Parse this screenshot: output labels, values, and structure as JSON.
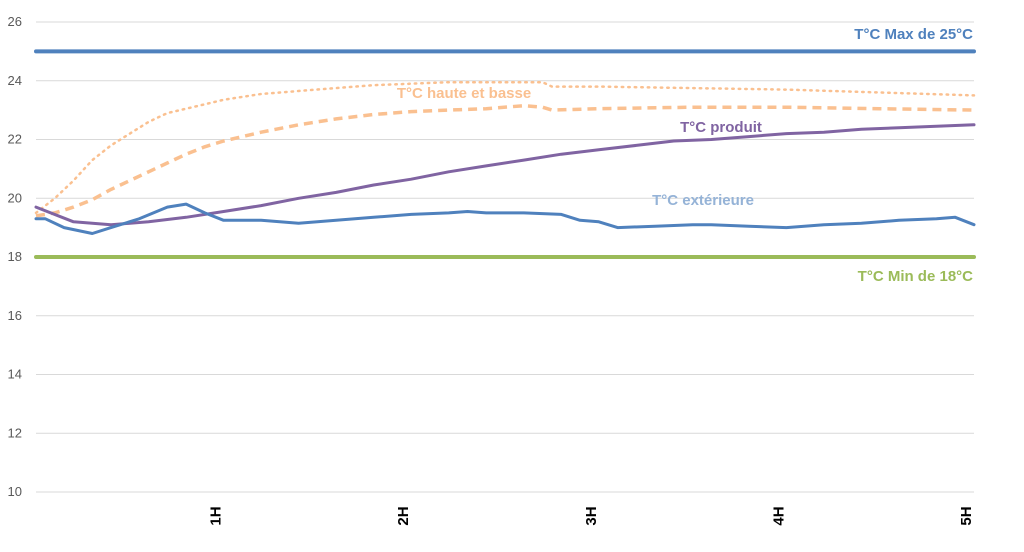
{
  "chart_data": {
    "type": "line",
    "title": "",
    "xlabel": "",
    "ylabel": "",
    "ylim": [
      10,
      26
    ],
    "xlim": [
      0,
      5
    ],
    "y_ticks": [
      10,
      12,
      14,
      16,
      18,
      20,
      22,
      24,
      26
    ],
    "x_ticks": [
      {
        "value": 1,
        "label": "1H"
      },
      {
        "value": 2,
        "label": "2H"
      },
      {
        "value": 3,
        "label": "3H"
      },
      {
        "value": 4,
        "label": "4H"
      },
      {
        "value": 5,
        "label": "5H"
      }
    ],
    "grid": "horizontal",
    "legend": "none",
    "series": [
      {
        "name": "T°C Max de 25°C",
        "color": "#4f81bd",
        "style": "solid",
        "x": [
          0,
          5
        ],
        "y": [
          25,
          25
        ]
      },
      {
        "name": "T°C Min de 18°C",
        "color": "#9bbb59",
        "style": "solid",
        "x": [
          0,
          5
        ],
        "y": [
          18,
          18
        ]
      },
      {
        "name": "T°C haute et basse",
        "color": "#fac090",
        "style": "dotted",
        "x": [
          0,
          0.1,
          0.2,
          0.3,
          0.4,
          0.5,
          0.6,
          0.7,
          0.8,
          0.9,
          1.0,
          1.2,
          1.4,
          1.6,
          1.8,
          2.0,
          2.2,
          2.4,
          2.6,
          2.7,
          2.75,
          3.0,
          3.5,
          4.0,
          4.5,
          5.0
        ],
        "y": [
          19.5,
          20.0,
          20.6,
          21.3,
          21.8,
          22.2,
          22.6,
          22.9,
          23.05,
          23.2,
          23.35,
          23.55,
          23.65,
          23.75,
          23.85,
          23.9,
          23.95,
          23.95,
          23.95,
          23.95,
          23.8,
          23.8,
          23.75,
          23.7,
          23.6,
          23.5
        ]
      },
      {
        "name": "T°C haute et basse",
        "color": "#fac090",
        "style": "dashed",
        "x": [
          0,
          0.1,
          0.2,
          0.3,
          0.4,
          0.5,
          0.6,
          0.7,
          0.8,
          0.9,
          1.0,
          1.2,
          1.4,
          1.6,
          1.8,
          2.0,
          2.2,
          2.4,
          2.6,
          2.7,
          2.75,
          3.0,
          3.5,
          4.0,
          4.5,
          5.0
        ],
        "y": [
          19.4,
          19.5,
          19.7,
          19.95,
          20.3,
          20.6,
          20.9,
          21.2,
          21.5,
          21.75,
          21.95,
          22.25,
          22.5,
          22.7,
          22.85,
          22.95,
          23.0,
          23.05,
          23.15,
          23.1,
          23.0,
          23.05,
          23.1,
          23.1,
          23.05,
          23.0
        ]
      },
      {
        "name": "T°C produit",
        "color": "#8064a2",
        "style": "solid",
        "x": [
          0,
          0.2,
          0.4,
          0.6,
          0.8,
          1.0,
          1.2,
          1.4,
          1.6,
          1.8,
          2.0,
          2.2,
          2.4,
          2.6,
          2.8,
          3.0,
          3.2,
          3.4,
          3.6,
          3.8,
          4.0,
          4.2,
          4.4,
          4.6,
          4.8,
          5.0
        ],
        "y": [
          19.7,
          19.2,
          19.1,
          19.2,
          19.35,
          19.55,
          19.75,
          20.0,
          20.2,
          20.45,
          20.65,
          20.9,
          21.1,
          21.3,
          21.5,
          21.65,
          21.8,
          21.95,
          22.0,
          22.1,
          22.2,
          22.25,
          22.35,
          22.4,
          22.45,
          22.5
        ]
      },
      {
        "name": "T°C extérieure",
        "color": "#4f81bd",
        "style": "solid",
        "x": [
          0,
          0.05,
          0.15,
          0.3,
          0.4,
          0.55,
          0.7,
          0.8,
          0.9,
          1.0,
          1.1,
          1.2,
          1.4,
          1.6,
          1.8,
          2.0,
          2.2,
          2.3,
          2.4,
          2.6,
          2.8,
          2.9,
          3.0,
          3.1,
          3.3,
          3.5,
          3.6,
          3.8,
          4.0,
          4.2,
          4.4,
          4.6,
          4.8,
          4.9,
          5.0
        ],
        "y": [
          19.3,
          19.3,
          19.0,
          18.8,
          19.0,
          19.3,
          19.7,
          19.8,
          19.5,
          19.25,
          19.25,
          19.25,
          19.15,
          19.25,
          19.35,
          19.45,
          19.5,
          19.55,
          19.5,
          19.5,
          19.45,
          19.25,
          19.2,
          19.0,
          19.05,
          19.1,
          19.1,
          19.05,
          19.0,
          19.1,
          19.15,
          19.25,
          19.3,
          19.35,
          19.1
        ]
      }
    ],
    "annotations": [
      {
        "text": "T°C Max de 25°C",
        "color": "#4f81bd"
      },
      {
        "text": "T°C haute et basse",
        "color": "#fac090"
      },
      {
        "text": "T°C produit",
        "color": "#8064a2"
      },
      {
        "text": "T°C extérieure",
        "color": "#95b3d7"
      },
      {
        "text": "T°C Min de 18°C",
        "color": "#9bbb59"
      }
    ]
  }
}
